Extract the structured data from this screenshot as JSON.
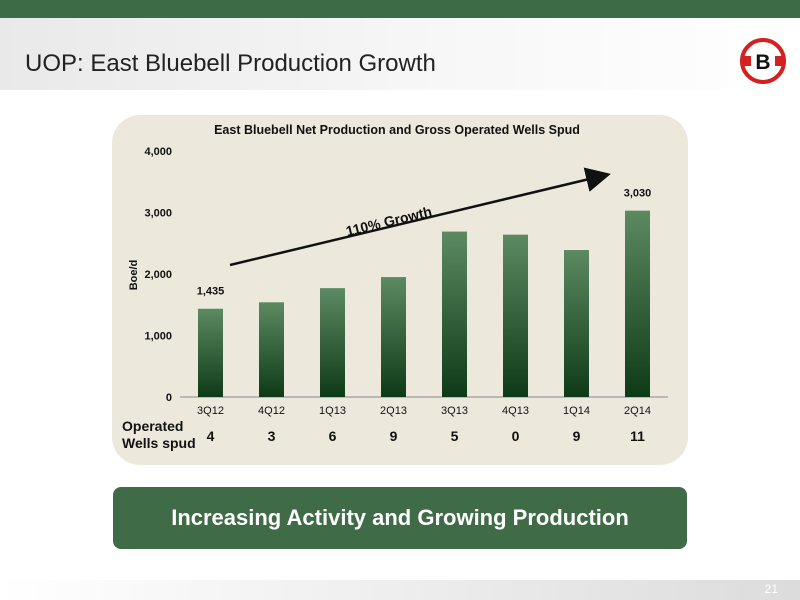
{
  "slide": {
    "title": "UOP: East Bluebell Production Growth",
    "page_number": "21",
    "banner_text": "Increasing Activity and Growing Production",
    "wells_label_line1": "Operated",
    "wells_label_line2": "Wells spud",
    "logo_letter": "B",
    "colors": {
      "accent": "#3d6b45",
      "bar_top": "#5c8a61",
      "bar_bottom": "#0f3a18",
      "logo_red": "#d32020"
    }
  },
  "chart_data": {
    "type": "bar",
    "title": "East Bluebell Net Production and Gross Operated Wells Spud",
    "ylabel": "Boe/d",
    "xlabel": "",
    "ylim": [
      0,
      4000
    ],
    "yticks": [
      "0",
      "1,000",
      "2,000",
      "3,000",
      "4,000"
    ],
    "categories": [
      "3Q12",
      "4Q12",
      "1Q13",
      "2Q13",
      "3Q13",
      "4Q13",
      "1Q14",
      "2Q14"
    ],
    "values": [
      1435,
      1540,
      1770,
      1950,
      2690,
      2640,
      2390,
      3030
    ],
    "data_labels": [
      {
        "index": 0,
        "text": "1,435"
      },
      {
        "index": 7,
        "text": "3,030"
      }
    ],
    "wells_spud": [
      "4",
      "3",
      "6",
      "9",
      "5",
      "0",
      "9",
      "11"
    ],
    "annotation": {
      "text": "110% Growth"
    },
    "grid": false,
    "legend": "none"
  }
}
